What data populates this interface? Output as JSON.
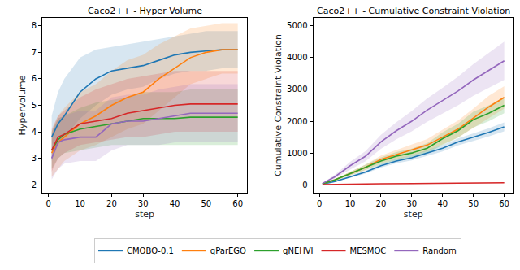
{
  "chart_data": [
    {
      "type": "line",
      "title": "Caco2++ - Hyper Volume",
      "x_label": "step",
      "y_label": "Hypervolume",
      "xlim": [
        -2,
        63
      ],
      "xticks": [
        0,
        10,
        20,
        30,
        40,
        50,
        60
      ],
      "ylim": [
        1.7,
        8.3
      ],
      "yticks": [
        2,
        3,
        4,
        5,
        6,
        7,
        8
      ],
      "grid": false,
      "legend": "bottom",
      "x": [
        1,
        3,
        5,
        10,
        15,
        20,
        25,
        30,
        35,
        40,
        45,
        50,
        55,
        60
      ],
      "series": [
        {
          "name": "CMOBO-0.1",
          "color": "#1f77b4",
          "values": [
            3.8,
            4.3,
            4.6,
            5.5,
            6.0,
            6.3,
            6.4,
            6.5,
            6.7,
            6.9,
            7.0,
            7.05,
            7.1,
            7.1
          ],
          "lower": [
            2.9,
            3.5,
            3.8,
            4.5,
            5.0,
            5.4,
            5.6,
            5.7,
            6.0,
            6.2,
            6.3,
            6.3,
            6.4,
            6.4
          ],
          "upper": [
            4.6,
            5.5,
            6.0,
            6.8,
            7.1,
            7.2,
            7.3,
            7.4,
            7.5,
            7.6,
            7.7,
            7.8,
            7.8,
            7.8
          ]
        },
        {
          "name": "qParEGO",
          "color": "#ff7f0e",
          "values": [
            3.2,
            3.6,
            3.8,
            4.3,
            4.6,
            5.0,
            5.3,
            5.5,
            6.0,
            6.4,
            6.8,
            7.0,
            7.1,
            7.1
          ],
          "lower": [
            2.3,
            2.6,
            2.9,
            3.3,
            3.5,
            3.8,
            4.1,
            4.3,
            4.8,
            5.3,
            5.8,
            6.0,
            6.2,
            6.2
          ],
          "upper": [
            4.0,
            4.6,
            4.9,
            5.5,
            5.8,
            6.3,
            6.7,
            6.9,
            7.3,
            7.6,
            7.9,
            8.0,
            8.1,
            8.1
          ]
        },
        {
          "name": "qNEHVI",
          "color": "#2ca02c",
          "values": [
            3.3,
            3.7,
            3.9,
            4.1,
            4.2,
            4.3,
            4.4,
            4.5,
            4.5,
            4.5,
            4.55,
            4.55,
            4.55,
            4.55
          ],
          "lower": [
            2.6,
            3.0,
            3.2,
            3.3,
            3.4,
            3.5,
            3.5,
            3.5,
            3.5,
            3.5,
            3.5,
            3.5,
            3.5,
            3.5
          ],
          "upper": [
            4.0,
            4.5,
            4.6,
            4.9,
            5.1,
            5.2,
            5.3,
            5.5,
            5.5,
            5.5,
            5.6,
            5.6,
            5.6,
            5.6
          ]
        },
        {
          "name": "MESMOC",
          "color": "#d62728",
          "values": [
            3.3,
            3.8,
            3.9,
            4.3,
            4.4,
            4.5,
            4.7,
            4.8,
            4.9,
            5.0,
            5.05,
            5.05,
            5.05,
            5.05
          ],
          "lower": [
            2.5,
            3.0,
            3.2,
            3.5,
            3.6,
            3.7,
            3.8,
            3.8,
            3.9,
            4.0,
            4.0,
            4.0,
            4.0,
            4.0
          ],
          "upper": [
            4.1,
            4.6,
            4.8,
            5.3,
            5.6,
            5.8,
            6.0,
            6.1,
            6.2,
            6.3,
            6.3,
            6.3,
            6.3,
            6.3
          ]
        },
        {
          "name": "Random",
          "color": "#9467bd",
          "values": [
            3.0,
            3.6,
            3.7,
            3.8,
            3.8,
            4.3,
            4.4,
            4.4,
            4.5,
            4.6,
            4.7,
            4.7,
            4.7,
            4.7
          ],
          "lower": [
            2.2,
            2.6,
            2.8,
            2.9,
            2.9,
            3.3,
            3.5,
            3.5,
            3.5,
            3.6,
            3.6,
            3.6,
            3.6,
            3.6
          ],
          "upper": [
            3.9,
            4.5,
            4.6,
            4.8,
            4.8,
            5.3,
            5.4,
            5.4,
            5.6,
            5.7,
            5.8,
            5.8,
            5.8,
            5.8
          ]
        }
      ]
    },
    {
      "type": "line",
      "title": "Caco2++ - Cumulative Constraint Violation",
      "x_label": "step",
      "y_label": "Cumulative Constraint Violation",
      "xlim": [
        -2,
        63
      ],
      "xticks": [
        0,
        10,
        20,
        30,
        40,
        50,
        60
      ],
      "ylim": [
        -250,
        5250
      ],
      "yticks": [
        0,
        1000,
        2000,
        3000,
        4000,
        5000
      ],
      "grid": false,
      "x": [
        1,
        3,
        5,
        10,
        15,
        20,
        25,
        30,
        35,
        40,
        45,
        50,
        55,
        60
      ],
      "series": [
        {
          "name": "CMOBO-0.1",
          "color": "#1f77b4",
          "values": [
            20,
            60,
            100,
            250,
            400,
            600,
            750,
            850,
            1000,
            1150,
            1350,
            1500,
            1650,
            1820
          ],
          "lower": [
            15,
            50,
            85,
            215,
            350,
            540,
            680,
            770,
            910,
            1050,
            1240,
            1380,
            1520,
            1680
          ],
          "upper": [
            25,
            70,
            115,
            285,
            450,
            660,
            820,
            930,
            1090,
            1250,
            1460,
            1620,
            1780,
            1960
          ]
        },
        {
          "name": "qParEGO",
          "color": "#ff7f0e",
          "values": [
            30,
            90,
            150,
            350,
            550,
            800,
            950,
            1100,
            1250,
            1500,
            1750,
            2100,
            2450,
            2750
          ],
          "lower": [
            20,
            70,
            120,
            290,
            460,
            680,
            810,
            930,
            1060,
            1270,
            1480,
            1800,
            2100,
            2400
          ],
          "upper": [
            40,
            110,
            180,
            410,
            640,
            920,
            1090,
            1270,
            1440,
            1730,
            2020,
            2400,
            2800,
            3100
          ]
        },
        {
          "name": "qNEHVI",
          "color": "#2ca02c",
          "values": [
            30,
            90,
            150,
            350,
            550,
            750,
            900,
            1000,
            1150,
            1450,
            1700,
            2050,
            2250,
            2500
          ],
          "lower": [
            20,
            70,
            120,
            290,
            460,
            640,
            770,
            860,
            990,
            1250,
            1480,
            1800,
            2000,
            2250
          ],
          "upper": [
            40,
            110,
            180,
            410,
            640,
            860,
            1030,
            1140,
            1310,
            1650,
            1920,
            2300,
            2500,
            2750
          ]
        },
        {
          "name": "MESMOC",
          "color": "#d62728",
          "values": [
            5,
            10,
            12,
            20,
            25,
            30,
            35,
            38,
            40,
            45,
            50,
            55,
            60,
            65
          ],
          "lower": [
            3,
            7,
            9,
            15,
            19,
            23,
            27,
            29,
            31,
            35,
            39,
            43,
            47,
            51
          ],
          "upper": [
            7,
            13,
            15,
            25,
            31,
            37,
            43,
            47,
            49,
            55,
            61,
            67,
            73,
            79
          ]
        },
        {
          "name": "Random",
          "color": "#9467bd",
          "values": [
            40,
            150,
            250,
            600,
            900,
            1350,
            1700,
            2000,
            2350,
            2650,
            2950,
            3300,
            3600,
            3900
          ],
          "lower": [
            25,
            110,
            190,
            480,
            740,
            1130,
            1430,
            1680,
            1980,
            2250,
            2500,
            2800,
            3050,
            3300
          ],
          "upper": [
            55,
            190,
            310,
            720,
            1060,
            1570,
            1970,
            2320,
            2720,
            3050,
            3400,
            3800,
            4150,
            4500
          ]
        }
      ]
    }
  ]
}
